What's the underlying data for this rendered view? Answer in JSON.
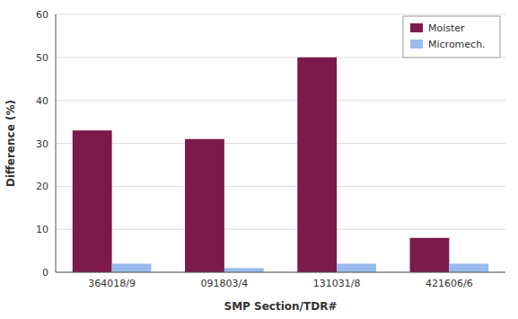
{
  "chart_data": {
    "type": "bar",
    "categories": [
      "364018/9",
      "091803/4",
      "131031/8",
      "421606/6"
    ],
    "series": [
      {
        "name": "Moister",
        "color": "#7B1A4B",
        "values": [
          33,
          31,
          50,
          8
        ]
      },
      {
        "name": "Micromech.",
        "color": "#99BBEE",
        "values": [
          2,
          1,
          2,
          2
        ]
      }
    ],
    "xlabel": "SMP Section/TDR#",
    "ylabel": "Difference (%)",
    "ylim": [
      0,
      60
    ],
    "yticks": [
      0,
      10,
      20,
      30,
      40,
      50,
      60
    ],
    "grid": true,
    "legend": "upper right"
  }
}
